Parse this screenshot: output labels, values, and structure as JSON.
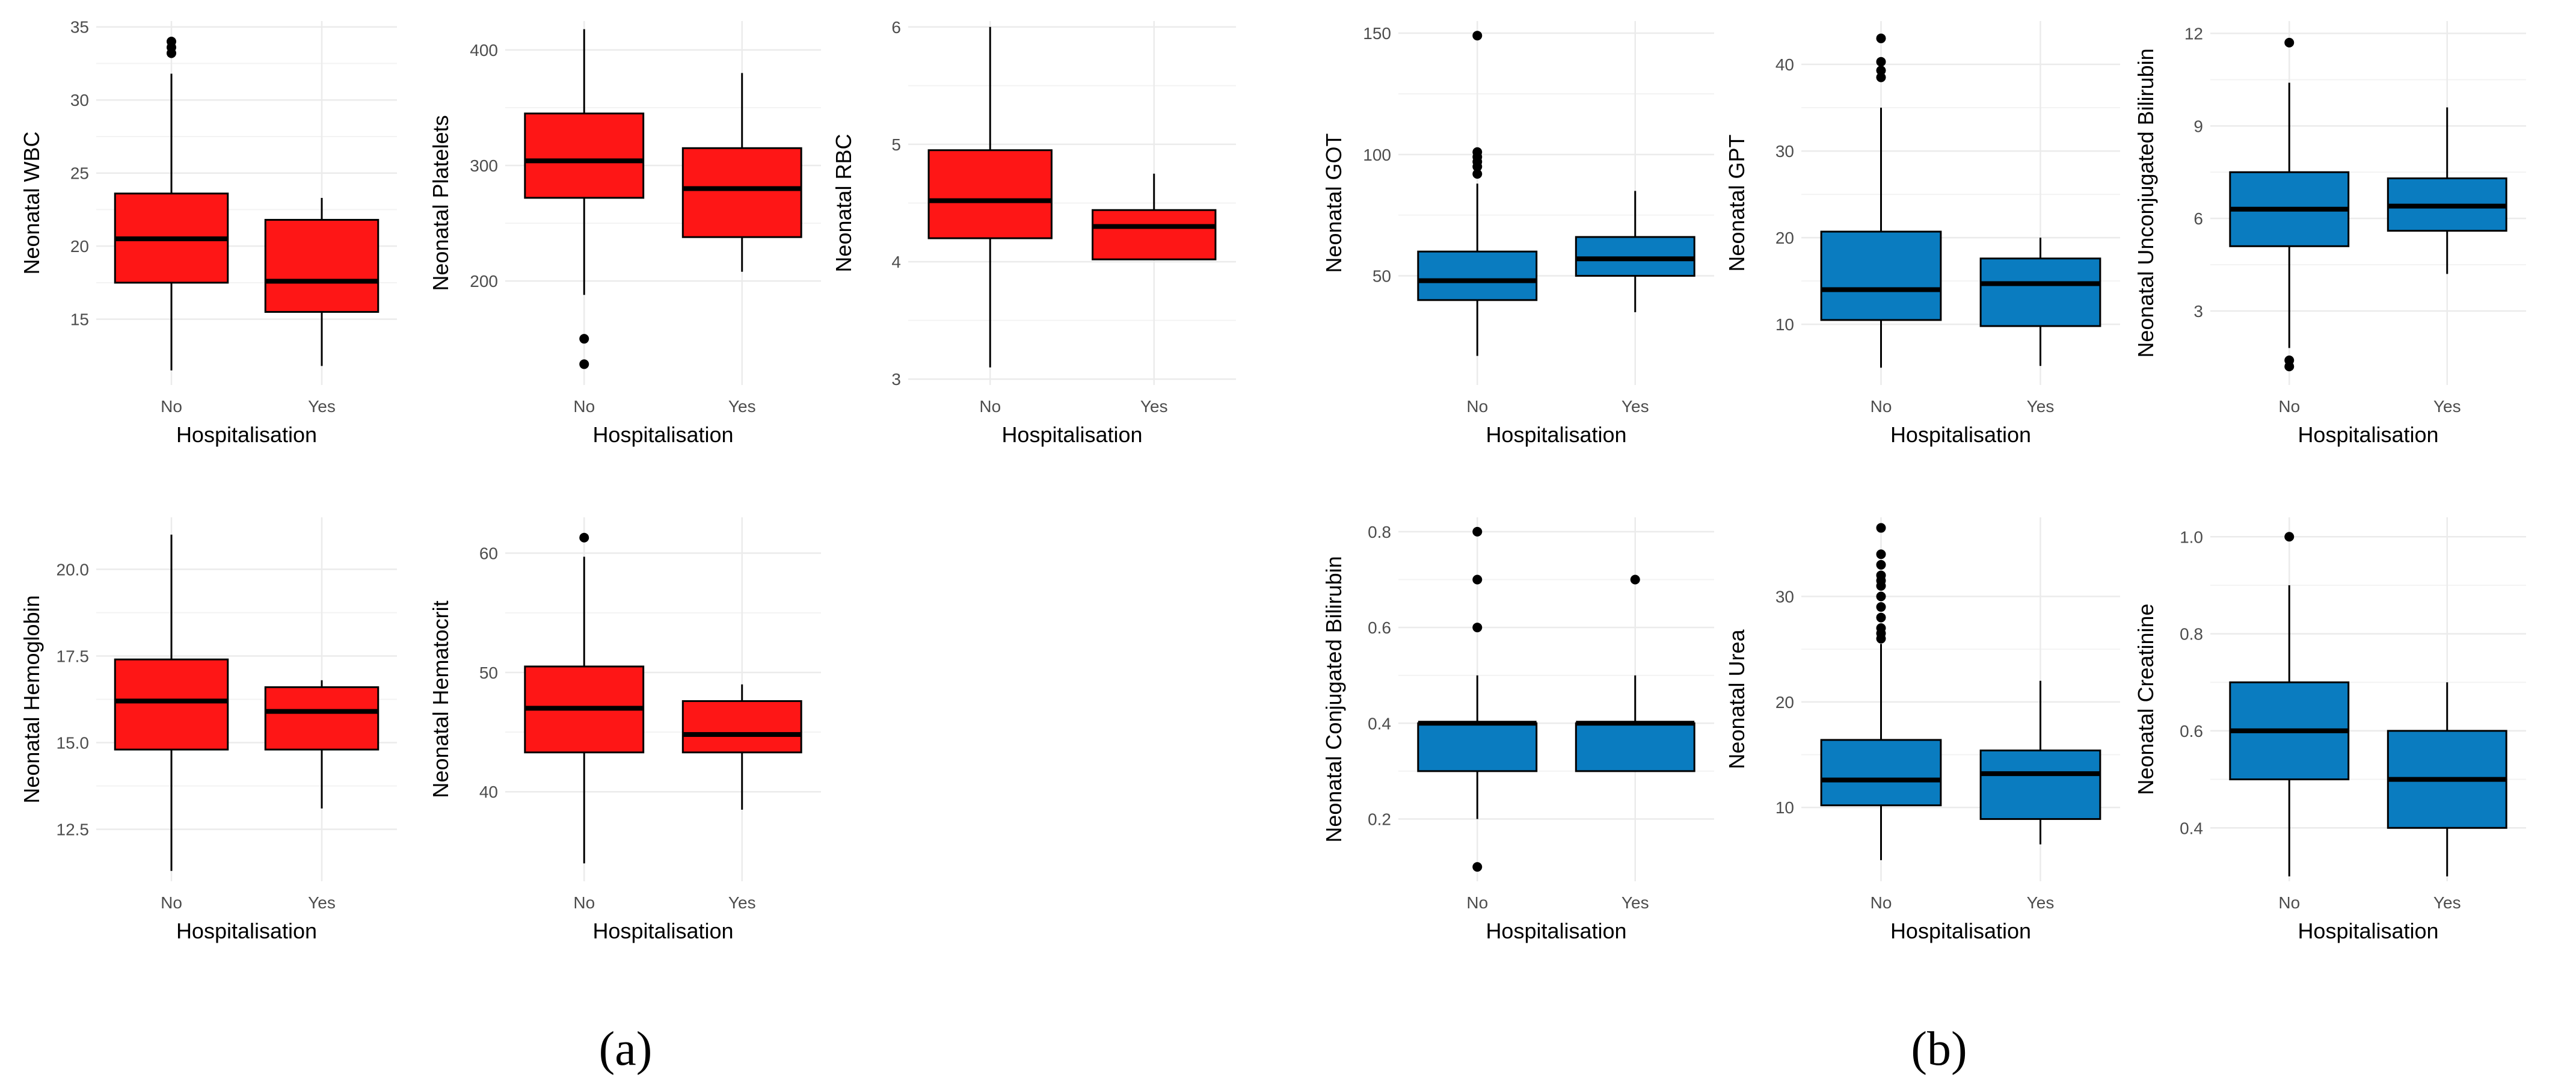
{
  "figure": {
    "captions": [
      "(a)",
      "(b)"
    ],
    "colors": {
      "group_a_fill": "#fe1616",
      "group_b_fill": "#0a7cc0",
      "median": "#000000",
      "grid": "#ebebeb"
    }
  },
  "chart_data": [
    {
      "type": "box",
      "panel": "a",
      "title": "",
      "xlabel": "Hospitalisation",
      "ylabel": "Neonatal WBC",
      "categories": [
        "No",
        "Yes"
      ],
      "yticks": [
        15,
        20,
        25,
        30,
        35
      ],
      "ylim": [
        10.5,
        35.4
      ],
      "boxes": [
        {
          "category": "No",
          "whisker_low": 11.5,
          "q1": 17.5,
          "median": 20.5,
          "q3": 23.6,
          "whisker_high": 31.8,
          "outliers": [
            33.2,
            33.6,
            34.0
          ]
        },
        {
          "category": "Yes",
          "whisker_low": 11.8,
          "q1": 15.5,
          "median": 17.6,
          "q3": 21.8,
          "whisker_high": 23.3,
          "outliers": []
        }
      ]
    },
    {
      "type": "box",
      "panel": "a",
      "title": "",
      "xlabel": "Hospitalisation",
      "ylabel": "Neonatal Platelets",
      "categories": [
        "No",
        "Yes"
      ],
      "yticks": [
        200,
        300,
        400
      ],
      "ylim": [
        110,
        425
      ],
      "boxes": [
        {
          "category": "No",
          "whisker_low": 188,
          "q1": 272,
          "median": 304,
          "q3": 345,
          "whisker_high": 418,
          "outliers": [
            150,
            128
          ]
        },
        {
          "category": "Yes",
          "whisker_low": 208,
          "q1": 238,
          "median": 280,
          "q3": 315,
          "whisker_high": 380,
          "outliers": []
        }
      ]
    },
    {
      "type": "box",
      "panel": "a",
      "title": "",
      "xlabel": "Hospitalisation",
      "ylabel": "Neonatal RBC",
      "categories": [
        "No",
        "Yes"
      ],
      "yticks": [
        3,
        4,
        5,
        6
      ],
      "ylim": [
        2.95,
        6.05
      ],
      "boxes": [
        {
          "category": "No",
          "whisker_low": 3.1,
          "q1": 4.2,
          "median": 4.52,
          "q3": 4.95,
          "whisker_high": 6.0,
          "outliers": []
        },
        {
          "category": "Yes",
          "whisker_low": 4.02,
          "q1": 4.02,
          "median": 4.3,
          "q3": 4.44,
          "whisker_high": 4.75,
          "outliers": []
        }
      ]
    },
    {
      "type": "box",
      "panel": "b",
      "title": "",
      "xlabel": "Hospitalisation",
      "ylabel": "Neonatal GOT",
      "categories": [
        "No",
        "Yes"
      ],
      "yticks": [
        50,
        100,
        150
      ],
      "ylim": [
        5,
        155
      ],
      "boxes": [
        {
          "category": "No",
          "whisker_low": 17,
          "q1": 40,
          "median": 48,
          "q3": 60,
          "whisker_high": 88,
          "outliers": [
            92,
            95,
            97,
            99,
            101,
            149
          ]
        },
        {
          "category": "Yes",
          "whisker_low": 35,
          "q1": 50,
          "median": 57,
          "q3": 66,
          "whisker_high": 85,
          "outliers": []
        }
      ]
    },
    {
      "type": "box",
      "panel": "b",
      "title": "",
      "xlabel": "Hospitalisation",
      "ylabel": "Neonatal GPT",
      "categories": [
        "No",
        "Yes"
      ],
      "yticks": [
        10,
        20,
        30,
        40
      ],
      "ylim": [
        3,
        45
      ],
      "boxes": [
        {
          "category": "No",
          "whisker_low": 5,
          "q1": 10.5,
          "median": 14,
          "q3": 20.7,
          "whisker_high": 35,
          "outliers": [
            38.5,
            39.3,
            40.3,
            43
          ]
        },
        {
          "category": "Yes",
          "whisker_low": 5.2,
          "q1": 9.8,
          "median": 14.7,
          "q3": 17.6,
          "whisker_high": 20,
          "outliers": []
        }
      ]
    },
    {
      "type": "box",
      "panel": "b",
      "title": "",
      "xlabel": "Hospitalisation",
      "ylabel": "Neonatal Unconjugated Bilirubin",
      "categories": [
        "No",
        "Yes"
      ],
      "yticks": [
        3,
        6,
        9,
        12
      ],
      "ylim": [
        0.6,
        12.4
      ],
      "boxes": [
        {
          "category": "No",
          "whisker_low": 1.8,
          "q1": 5.1,
          "median": 6.3,
          "q3": 7.5,
          "whisker_high": 10.4,
          "outliers": [
            1.4,
            1.2,
            11.7
          ]
        },
        {
          "category": "Yes",
          "whisker_low": 4.2,
          "q1": 5.6,
          "median": 6.4,
          "q3": 7.3,
          "whisker_high": 9.6,
          "outliers": []
        }
      ]
    },
    {
      "type": "box",
      "panel": "a",
      "title": "",
      "xlabel": "Hospitalisation",
      "ylabel": "Neonatal Hemoglobin",
      "categories": [
        "No",
        "Yes"
      ],
      "yticks": [
        12.5,
        15.0,
        17.5,
        20.0
      ],
      "ylabel_decimals": 1,
      "ylim": [
        11.0,
        21.5
      ],
      "boxes": [
        {
          "category": "No",
          "whisker_low": 11.3,
          "q1": 14.8,
          "median": 16.2,
          "q3": 17.4,
          "whisker_high": 21.0,
          "outliers": []
        },
        {
          "category": "Yes",
          "whisker_low": 13.1,
          "q1": 14.8,
          "median": 15.9,
          "q3": 16.6,
          "whisker_high": 16.8,
          "outliers": []
        }
      ]
    },
    {
      "type": "box",
      "panel": "a",
      "title": "",
      "xlabel": "Hospitalisation",
      "ylabel": "Neonatal Hematocrit",
      "categories": [
        "No",
        "Yes"
      ],
      "yticks": [
        40,
        50,
        60
      ],
      "ylim": [
        32.5,
        63
      ],
      "boxes": [
        {
          "category": "No",
          "whisker_low": 34,
          "q1": 43.3,
          "median": 47,
          "q3": 50.5,
          "whisker_high": 59.7,
          "outliers": [
            61.3
          ]
        },
        {
          "category": "Yes",
          "whisker_low": 38.5,
          "q1": 43.3,
          "median": 44.8,
          "q3": 47.6,
          "whisker_high": 49,
          "outliers": []
        }
      ]
    },
    {
      "type": "box",
      "panel": "b",
      "title": "",
      "xlabel": "Hospitalisation",
      "ylabel": "Neonatal Conjugated Bilirubin",
      "categories": [
        "No",
        "Yes"
      ],
      "yticks": [
        0.2,
        0.4,
        0.6,
        0.8
      ],
      "ylabel_decimals": 1,
      "ylim": [
        0.07,
        0.83
      ],
      "boxes": [
        {
          "category": "No",
          "whisker_low": 0.2,
          "q1": 0.3,
          "median": 0.4,
          "q3": 0.4,
          "whisker_high": 0.5,
          "outliers": [
            0.6,
            0.7,
            0.8,
            0.1
          ]
        },
        {
          "category": "Yes",
          "whisker_low": 0.3,
          "q1": 0.3,
          "median": 0.4,
          "q3": 0.4,
          "whisker_high": 0.5,
          "outliers": [
            0.7
          ]
        }
      ]
    },
    {
      "type": "box",
      "panel": "b",
      "title": "",
      "xlabel": "Hospitalisation",
      "ylabel": "Neonatal Urea",
      "categories": [
        "No",
        "Yes"
      ],
      "yticks": [
        10,
        20,
        30
      ],
      "ylim": [
        3,
        37.5
      ],
      "boxes": [
        {
          "category": "No",
          "whisker_low": 5,
          "q1": 10.2,
          "median": 12.6,
          "q3": 16.4,
          "whisker_high": 25.5,
          "outliers": [
            26,
            26.5,
            27,
            28,
            29,
            30,
            31,
            31.5,
            32,
            33,
            34,
            36.5
          ]
        },
        {
          "category": "Yes",
          "whisker_low": 6.5,
          "q1": 8.9,
          "median": 13.2,
          "q3": 15.4,
          "whisker_high": 22,
          "outliers": []
        }
      ]
    },
    {
      "type": "box",
      "panel": "b",
      "title": "",
      "xlabel": "Hospitalisation",
      "ylabel": "Neonatal Creatinine",
      "categories": [
        "No",
        "Yes"
      ],
      "yticks": [
        0.4,
        0.6,
        0.8,
        1.0
      ],
      "ylabel_decimals": 1,
      "ylim": [
        0.29,
        1.04
      ],
      "boxes": [
        {
          "category": "No",
          "whisker_low": 0.3,
          "q1": 0.5,
          "median": 0.6,
          "q3": 0.7,
          "whisker_high": 0.9,
          "outliers": [
            1.0
          ]
        },
        {
          "category": "Yes",
          "whisker_low": 0.3,
          "q1": 0.4,
          "median": 0.5,
          "q3": 0.6,
          "whisker_high": 0.7,
          "outliers": []
        }
      ]
    }
  ]
}
